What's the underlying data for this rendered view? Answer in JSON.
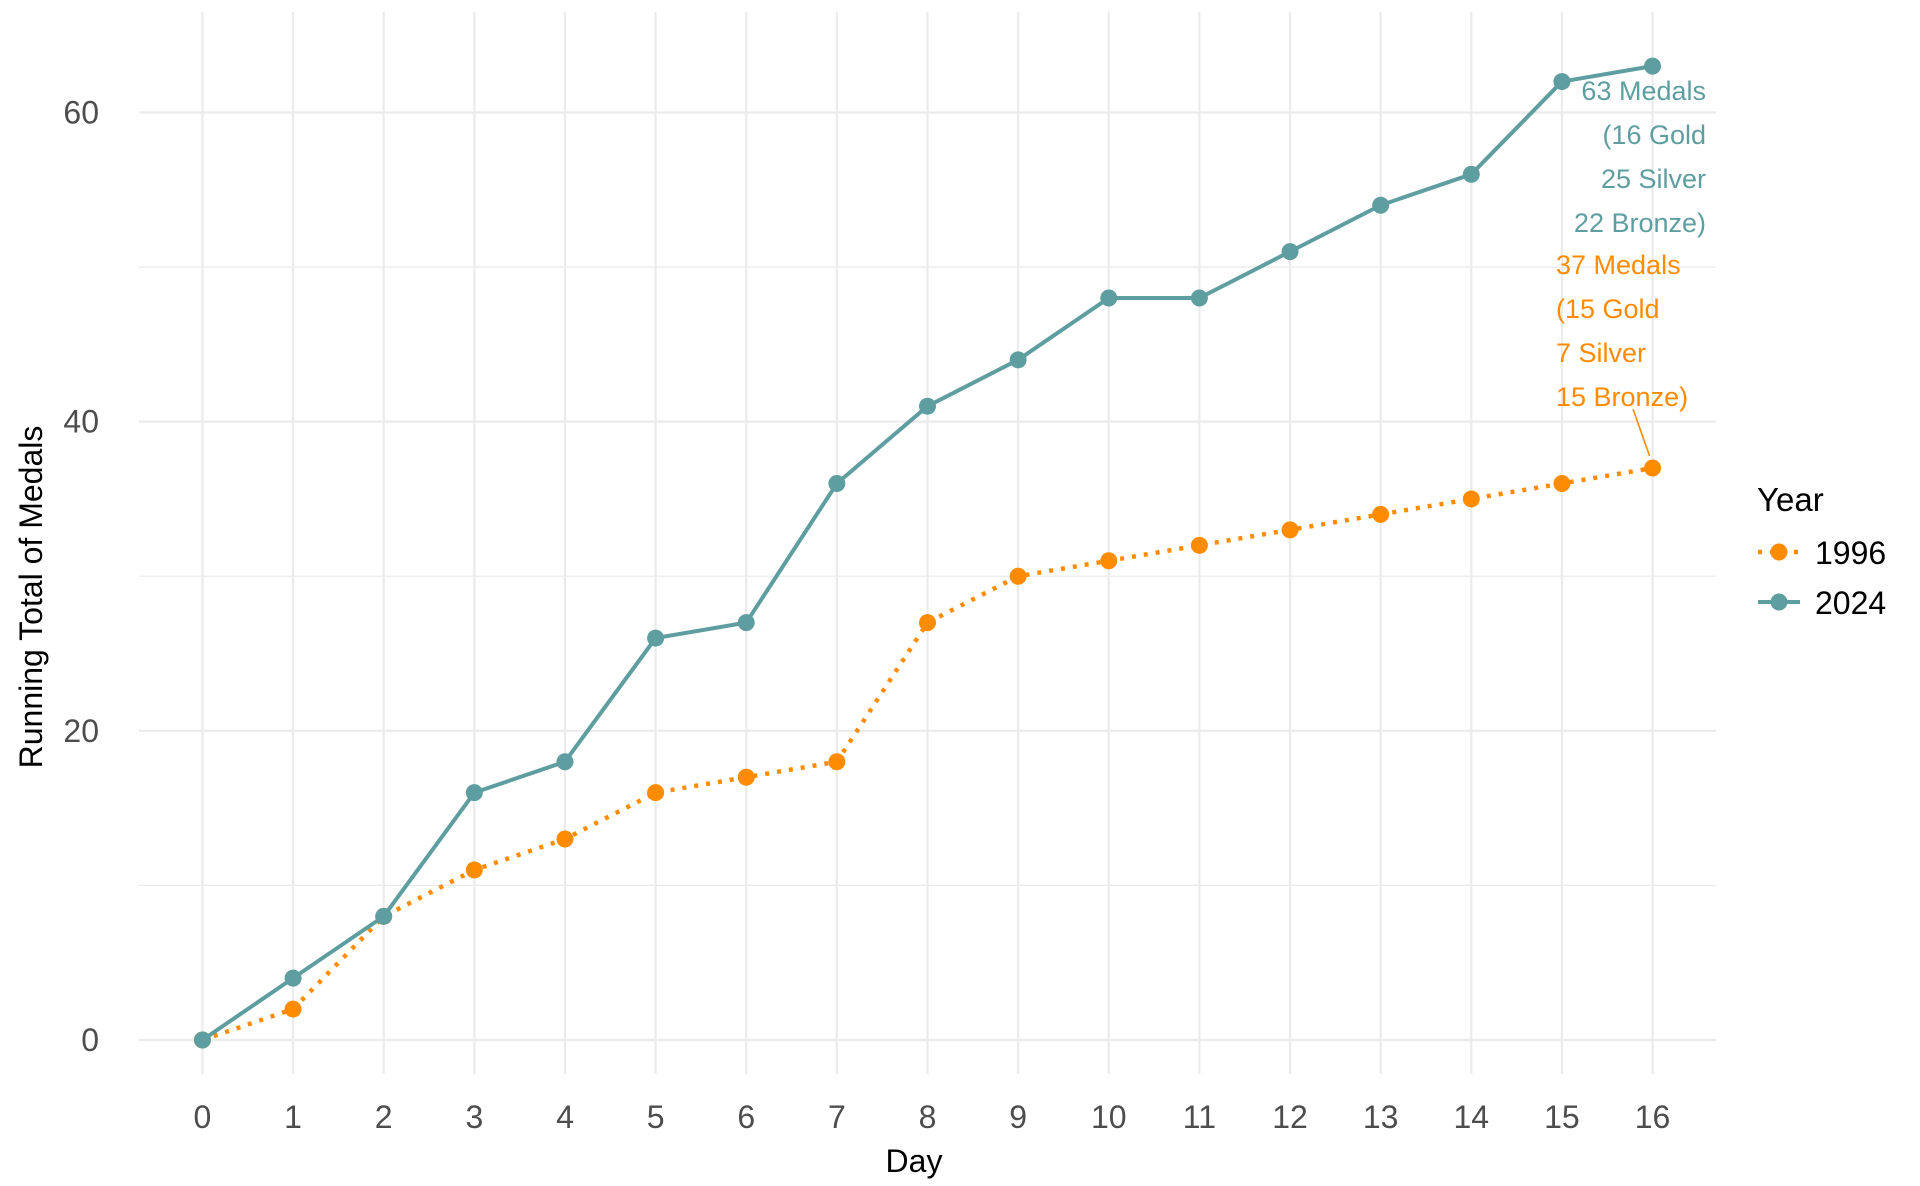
{
  "chart_data": {
    "type": "line",
    "title": "",
    "xlabel": "Day",
    "ylabel": "Running Total of Medals",
    "xlim": [
      -0.7,
      16.7
    ],
    "ylim": [
      -2.2,
      66.5
    ],
    "x_ticks": [
      0,
      1,
      2,
      3,
      4,
      5,
      6,
      7,
      8,
      9,
      10,
      11,
      12,
      13,
      14,
      15,
      16
    ],
    "y_ticks": [
      0,
      20,
      40,
      60
    ],
    "y_minor_ticks": [
      10,
      30,
      50
    ],
    "grid": true,
    "legend": {
      "title": "Year",
      "placement": "right"
    },
    "series": [
      {
        "name": "1996",
        "color": "#FF8C00",
        "line_style": "dotted",
        "x": [
          0,
          1,
          2,
          3,
          4,
          5,
          6,
          7,
          8,
          9,
          10,
          11,
          12,
          13,
          14,
          15,
          16
        ],
        "values": [
          0,
          2,
          8,
          11,
          13,
          16,
          17,
          18,
          27,
          30,
          31,
          32,
          33,
          34,
          35,
          36,
          37
        ]
      },
      {
        "name": "2024",
        "color": "#5F9EA0",
        "line_style": "solid",
        "x": [
          0,
          1,
          2,
          3,
          4,
          5,
          6,
          7,
          8,
          9,
          10,
          11,
          12,
          13,
          14,
          15,
          16
        ],
        "values": [
          0,
          4,
          8,
          16,
          18,
          26,
          27,
          36,
          41,
          44,
          48,
          48,
          51,
          54,
          56,
          62,
          63
        ]
      }
    ],
    "annotations": [
      {
        "series": "2024",
        "x": 16,
        "y": 63,
        "lines": [
          "63 Medals",
          "(16 Gold",
          "25 Silver",
          "22 Bronze)"
        ]
      },
      {
        "series": "1996",
        "x": 16,
        "y": 37,
        "lines": [
          "37 Medals",
          "(15 Gold",
          "7 Silver",
          "15 Bronze)"
        ]
      }
    ]
  }
}
